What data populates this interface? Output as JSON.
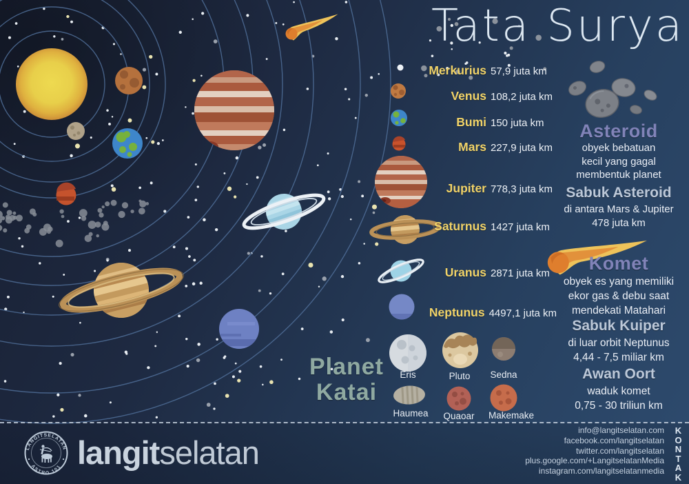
{
  "title": "Tata Surya",
  "planets": [
    {
      "name": "Merkurius",
      "distance": "57,9 juta km"
    },
    {
      "name": "Venus",
      "distance": "108,2 juta km"
    },
    {
      "name": "Bumi",
      "distance": "150 juta km"
    },
    {
      "name": "Mars",
      "distance": "227,9 juta km"
    },
    {
      "name": "Jupiter",
      "distance": "778,3 juta km"
    },
    {
      "name": "Saturnus",
      "distance": "1427 juta km"
    },
    {
      "name": "Uranus",
      "distance": "2871 juta km"
    },
    {
      "name": "Neptunus",
      "distance": "4497,1 juta km"
    }
  ],
  "asteroid_section": {
    "heading": "Asteroid",
    "description_lines": [
      "obyek bebatuan",
      "kecil yang gagal",
      "membentuk planet"
    ],
    "belt_heading": "Sabuk Asteroid",
    "belt_lines": [
      "di antara Mars & Jupiter",
      "478 juta km"
    ]
  },
  "comet_section": {
    "heading": "Komet",
    "description_lines": [
      "obyek es yang memiliki",
      "ekor gas & debu saat",
      "mendekati Matahari"
    ],
    "kuiper_heading": "Sabuk Kuiper",
    "kuiper_lines": [
      "di luar orbit Neptunus",
      "4,44 - 7,5 miliar km"
    ],
    "oort_heading": "Awan Oort",
    "oort_lines": [
      "waduk komet",
      "0,75 - 30 triliun km"
    ]
  },
  "dwarf_section": {
    "heading_lines": [
      "Planet",
      "Katai"
    ],
    "planets": [
      "Eris",
      "Pluto",
      "Sedna",
      "Haumea",
      "Quaoar",
      "Makemake"
    ]
  },
  "footer": {
    "stamp": {
      "top_text": "LANGITSELATAN",
      "bottom_text": "ASTRO 101"
    },
    "brand": {
      "bold": "langit",
      "light": "selatan"
    },
    "kontak_label": "KONTAK",
    "contacts": [
      "info@langitselatan.com",
      "facebook.com/langitselatan",
      "twitter.com/langitselatan",
      "plus.google.com/+LangitselatanMedia",
      "instagram.com/langitselatanmedia"
    ]
  },
  "colors": {
    "background_top": "#181f31",
    "background_bottom": "#2e4b6e",
    "title": "#dce7f1",
    "planet_name": "#f1d368",
    "distance_text": "#edf1f6",
    "section_heading": "#8183b8",
    "subsection_heading": "#bcc8d8",
    "dwarf_heading": "#8fa9a1",
    "orbit_line": "#4f6d96",
    "star": "#e8edf2",
    "footer_text": "#c6d2e0"
  }
}
